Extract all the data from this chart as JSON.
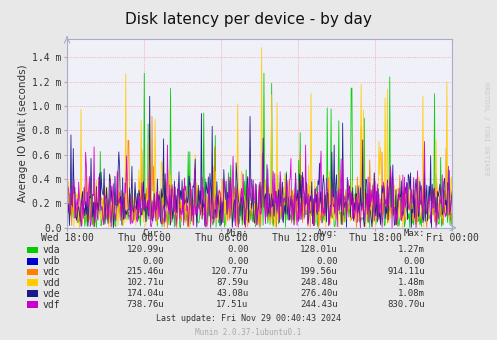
{
  "title": "Disk latency per device - by day",
  "ylabel": "Average IO Wait (seconds)",
  "background_color": "#e8e8e8",
  "plot_bg_color": "#f0f0f8",
  "grid_color": "#ff8080",
  "title_fontsize": 11,
  "label_fontsize": 7.5,
  "tick_fontsize": 7,
  "series": [
    "vda",
    "vdb",
    "vdc",
    "vdd",
    "vde",
    "vdf"
  ],
  "colors": [
    "#00cc00",
    "#0000cc",
    "#ff7f00",
    "#ffcc00",
    "#1a1a8c",
    "#cc00cc"
  ],
  "legend_cur": [
    "120.99u",
    "0.00",
    "215.46u",
    "102.71u",
    "174.04u",
    "738.76u"
  ],
  "legend_min": [
    "0.00",
    "0.00",
    "120.77u",
    "87.59u",
    "43.08u",
    "17.51u"
  ],
  "legend_avg": [
    "128.01u",
    "0.00",
    "199.56u",
    "248.48u",
    "276.40u",
    "244.43u"
  ],
  "legend_max": [
    "1.27m",
    "0.00",
    "914.11u",
    "1.48m",
    "1.08m",
    "830.70u"
  ],
  "xticklabels": [
    "Wed 18:00",
    "Thu 00:00",
    "Thu 06:00",
    "Thu 12:00",
    "Thu 18:00",
    "Fri 00:00"
  ],
  "ytick_vals": [
    0.0,
    0.2,
    0.4,
    0.6,
    0.8,
    1.0,
    1.2,
    1.4
  ],
  "yticklabels": [
    "0.0",
    "0.2 m",
    "0.4 m",
    "0.6 m",
    "0.8 m",
    "1.0 m",
    "1.2 m",
    "1.4 m"
  ],
  "ylim_max": 1.55,
  "footer_text": "Last update: Fri Nov 29 00:40:43 2024",
  "munin_text": "Munin 2.0.37-1ubuntu0.1",
  "rrdtool_text": "RRDTOOL / TOBI OETIKER",
  "num_points": 500,
  "seed": 42
}
